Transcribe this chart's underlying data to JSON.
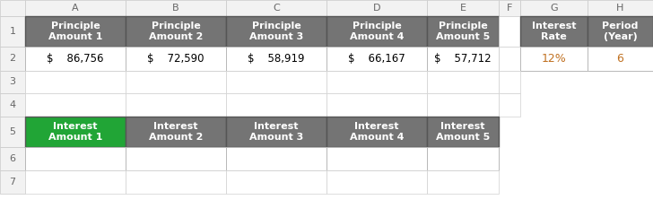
{
  "col_headers": [
    "A",
    "B",
    "C",
    "D",
    "E",
    "F",
    "G",
    "H"
  ],
  "row_headers": [
    "1",
    "2",
    "3",
    "4",
    "5",
    "6",
    "7"
  ],
  "principle_headers": [
    "Principle\nAmount 1",
    "Principle\nAmount 2",
    "Principle\nAmount 3",
    "Principle\nAmount 4",
    "Principle\nAmount 5"
  ],
  "principle_values": [
    "$    86,756",
    "$    72,590",
    "$    58,919",
    "$    66,167",
    "$    57,712"
  ],
  "interest_rate_header": "Interest\nRate",
  "period_header": "Period\n(Year)",
  "interest_rate_value": "12%",
  "period_value": "6",
  "interest_headers": [
    "Interest\nAmount 1",
    "Interest\nAmount 2",
    "Interest\nAmount 3",
    "Interest\nAmount 4",
    "Interest\nAmount 5"
  ],
  "header_bg": "#747474",
  "header_text": "#ffffff",
  "green_bg": "#21a536",
  "green_text": "#ffffff",
  "cell_bg": "#ffffff",
  "col_header_bg": "#f2f2f2",
  "col_header_text": "#666666",
  "value_text": "#000000",
  "value_special_color": "#c07020",
  "fig_bg": "#ffffff",
  "border_dark": "#555555",
  "border_light": "#d0d0d0"
}
